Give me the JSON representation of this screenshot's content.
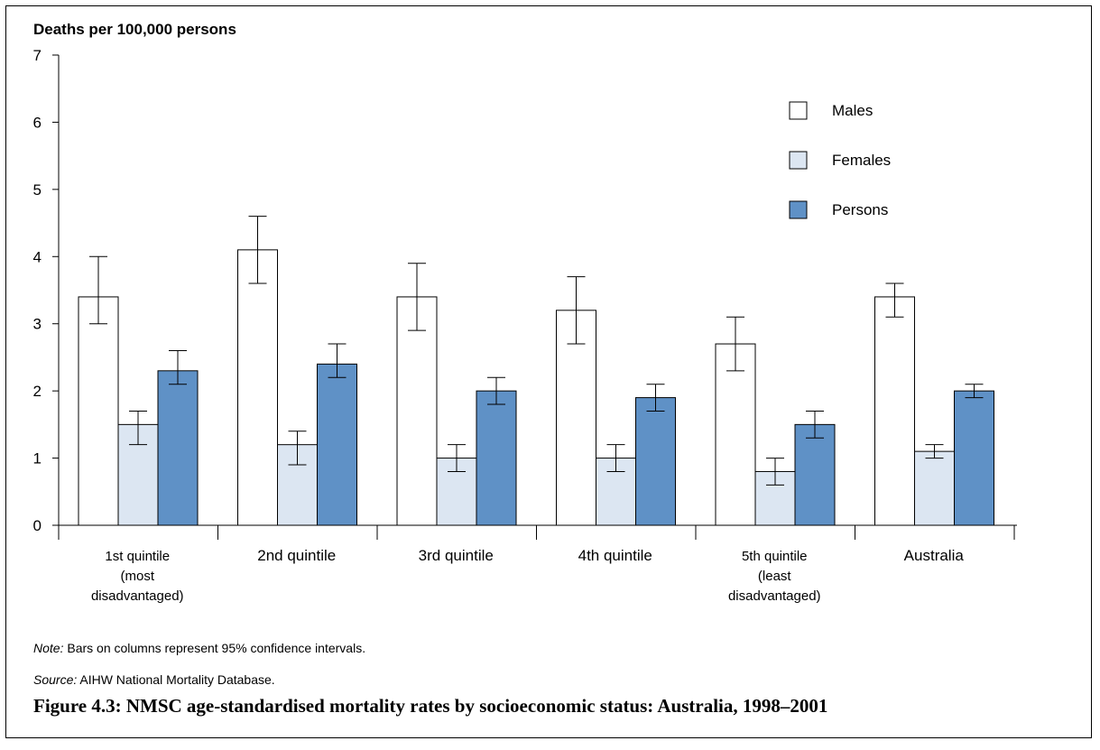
{
  "chart_data": {
    "type": "bar",
    "ylabel": "Deaths per 100,000 persons",
    "ylim": [
      0,
      7
    ],
    "yticks": [
      "0",
      "1",
      "2",
      "3",
      "4",
      "5",
      "6",
      "7"
    ],
    "categories": [
      [
        "1st quintile",
        "(most",
        "disadvantaged)"
      ],
      [
        "2nd quintile"
      ],
      [
        "3rd quintile"
      ],
      [
        "4th quintile"
      ],
      [
        "5th quintile",
        "(least",
        "disadvantaged)"
      ],
      [
        "Australia"
      ]
    ],
    "series": [
      {
        "name": "Males",
        "color": "#ffffff",
        "values": [
          3.4,
          4.1,
          3.4,
          3.2,
          2.7,
          3.4
        ],
        "ci_low": [
          3.0,
          3.6,
          2.9,
          2.7,
          2.3,
          3.1
        ],
        "ci_high": [
          4.0,
          4.6,
          3.9,
          3.7,
          3.1,
          3.6
        ]
      },
      {
        "name": "Females",
        "color": "#dce6f2",
        "values": [
          1.5,
          1.2,
          1.0,
          1.0,
          0.8,
          1.1
        ],
        "ci_low": [
          1.2,
          0.9,
          0.8,
          0.8,
          0.6,
          1.0
        ],
        "ci_high": [
          1.7,
          1.4,
          1.2,
          1.2,
          1.0,
          1.2
        ]
      },
      {
        "name": "Persons",
        "color": "#5f91c6",
        "values": [
          2.3,
          2.4,
          2.0,
          1.9,
          1.5,
          2.0
        ],
        "ci_low": [
          2.1,
          2.2,
          1.8,
          1.7,
          1.3,
          1.9
        ],
        "ci_high": [
          2.6,
          2.7,
          2.2,
          2.1,
          1.7,
          2.1
        ]
      }
    ],
    "legend_position": "top-right",
    "grid": false
  },
  "note": {
    "label": "Note:",
    "text": " Bars on columns represent 95% confidence intervals."
  },
  "source": {
    "label": "Source:",
    "text": " AIHW National Mortality Database."
  },
  "caption": "Figure 4.3: NMSC age-standardised mortality rates by socioeconomic status: Australia, 1998–2001"
}
